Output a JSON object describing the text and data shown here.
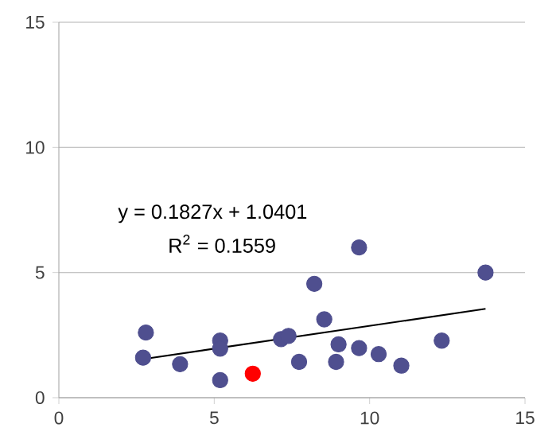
{
  "chart_data": {
    "type": "scatter",
    "xlim": [
      0,
      15
    ],
    "ylim": [
      0,
      15
    ],
    "xticks": [
      0,
      5,
      10,
      15
    ],
    "yticks": [
      0,
      5,
      10,
      15
    ],
    "grid": "y",
    "marker": "circle",
    "annotations": [
      "y = 0.1827x + 1.0401",
      "R$^{2}$ = 0.1559"
    ],
    "series": [
      {
        "color": "#4f4f8f",
        "x": [
          2.8,
          2.71,
          3.9,
          5.19,
          5.19,
          5.19,
          7.15,
          7.39,
          7.73,
          8.22,
          8.54,
          8.92,
          9.0,
          9.66,
          9.66,
          10.29,
          11.02,
          12.32,
          13.73
        ],
        "values": [
          2.6,
          1.6,
          1.34,
          2.28,
          1.96,
          0.7,
          2.34,
          2.47,
          1.43,
          4.55,
          3.13,
          1.43,
          2.13,
          1.98,
          6.0,
          1.74,
          1.28,
          2.28,
          5.0
        ]
      },
      {
        "color": "#ff0000",
        "x": [
          6.24
        ],
        "values": [
          0.96
        ]
      },
      {
        "type": "line",
        "marker": "none",
        "color": "#000000",
        "x": [
          2.71,
          13.73
        ],
        "values": [
          1.54,
          3.55
        ]
      }
    ]
  }
}
